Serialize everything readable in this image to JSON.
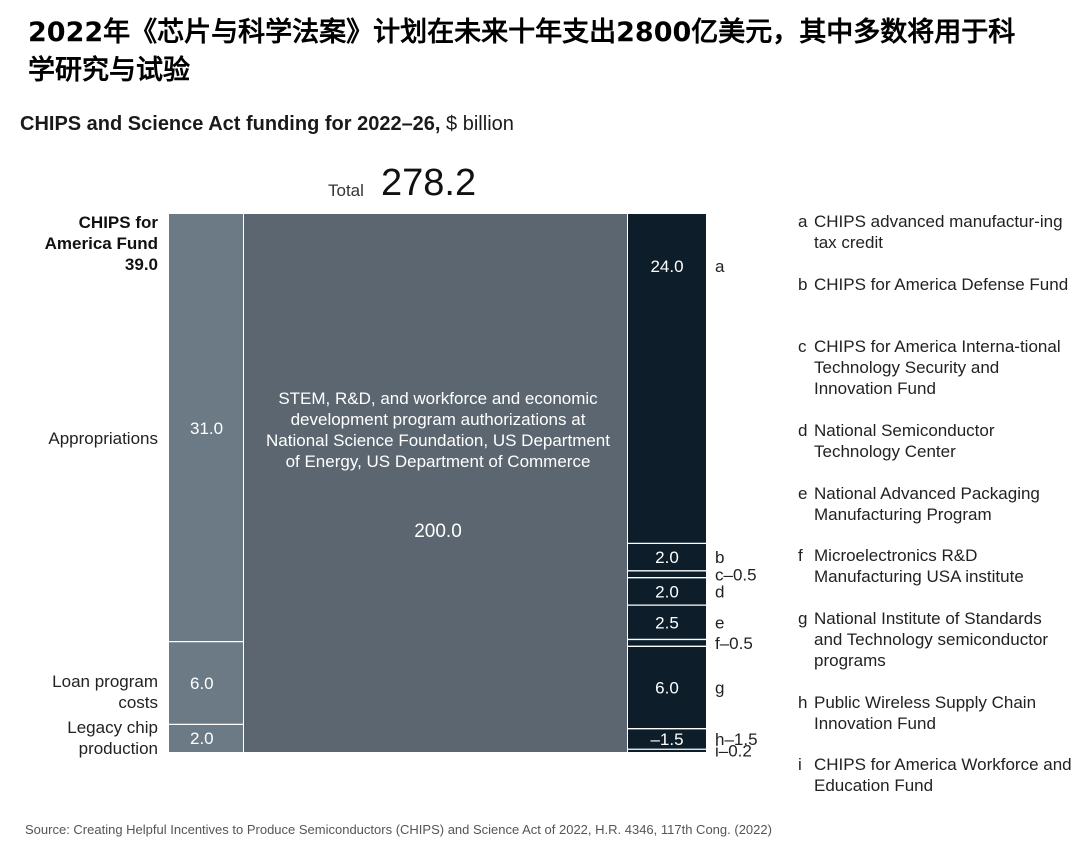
{
  "headline": "2022年《芯片与科学法案》计划在未来十年支出2800亿美元，其中多数将用于科学研究与试验",
  "chart_title_bold": "CHIPS and Science Act funding for 2022–26,",
  "chart_title_unit": " $ billion",
  "total": {
    "label": "Total",
    "value": "278.2"
  },
  "fund_label": [
    "CHIPS for",
    "America Fund",
    "39.0"
  ],
  "left_labels": {
    "appropriations": "Appropriations",
    "loan": [
      "Loan program",
      "costs"
    ],
    "legacy": [
      "Legacy chip",
      "production"
    ]
  },
  "center": {
    "text": "STEM, R&D, and workforce and economic development program authorizations at National Science Foundation, US Department of Energy, US Department of Commerce",
    "value": "200.0"
  },
  "source": "Source: Creating Helpful Incentives to Produce Semiconductors (CHIPS) and Science Act of 2022, H.R. 4346, 117th Cong. (2022)",
  "legend": [
    {
      "key": "a",
      "text": "CHIPS advanced manufactur-ing tax credit"
    },
    {
      "key": "b",
      "text": "CHIPS for America Defense Fund"
    },
    {
      "key": "c",
      "text": "CHIPS for America Interna-tional Technology Security and Innovation Fund"
    },
    {
      "key": "d",
      "text": "National Semiconductor Technology Center"
    },
    {
      "key": "e",
      "text": "National Advanced Packaging Manufacturing Program"
    },
    {
      "key": "f",
      "text": "Microelectronics R&D Manufacturing USA institute"
    },
    {
      "key": "g",
      "text": "National Institute of Standards and Technology semiconductor programs"
    },
    {
      "key": "h",
      "text": "Public Wireless Supply Chain Innovation Fund"
    },
    {
      "key": "i",
      "text": "CHIPS for America Workforce and Education Fund"
    }
  ],
  "colors": {
    "left_column": "#6b7a85",
    "center_column": "#5b6670",
    "right_column": "#0d1e2a",
    "divider": "#ffffff"
  },
  "chart_data": {
    "type": "bar",
    "title": "CHIPS and Science Act funding for 2022–26, $ billion",
    "unit": "$ billion",
    "total": 278.2,
    "columns": [
      {
        "name": "CHIPS for America Fund",
        "total": 39.0,
        "segments": [
          {
            "label": "Appropriations",
            "value": 31.0
          },
          {
            "label": "Loan program costs",
            "value": 6.0
          },
          {
            "label": "Legacy chip production",
            "value": 2.0
          }
        ]
      },
      {
        "name": "",
        "total": 200.0,
        "segments": [
          {
            "label": "STEM, R&D, and workforce and economic development program authorizations at National Science Foundation, US Department of Energy, US Department of Commerce",
            "value": 200.0
          }
        ]
      },
      {
        "name": "",
        "total": 39.2,
        "segments": [
          {
            "label": "a",
            "value": 24.0,
            "display": "24.0"
          },
          {
            "label": "b",
            "value": 2.0,
            "display": "2.0"
          },
          {
            "label": "c",
            "value": 0.5,
            "display": "–0.5"
          },
          {
            "label": "d",
            "value": 2.0,
            "display": "2.0"
          },
          {
            "label": "e",
            "value": 2.5,
            "display": "2.5"
          },
          {
            "label": "f",
            "value": 0.5,
            "display": "–0.5"
          },
          {
            "label": "g",
            "value": 6.0,
            "display": "6.0"
          },
          {
            "label": "h",
            "value": 1.5,
            "display": "–1.5"
          },
          {
            "label": "i",
            "value": 0.2,
            "display": "–0.2"
          }
        ]
      }
    ]
  }
}
